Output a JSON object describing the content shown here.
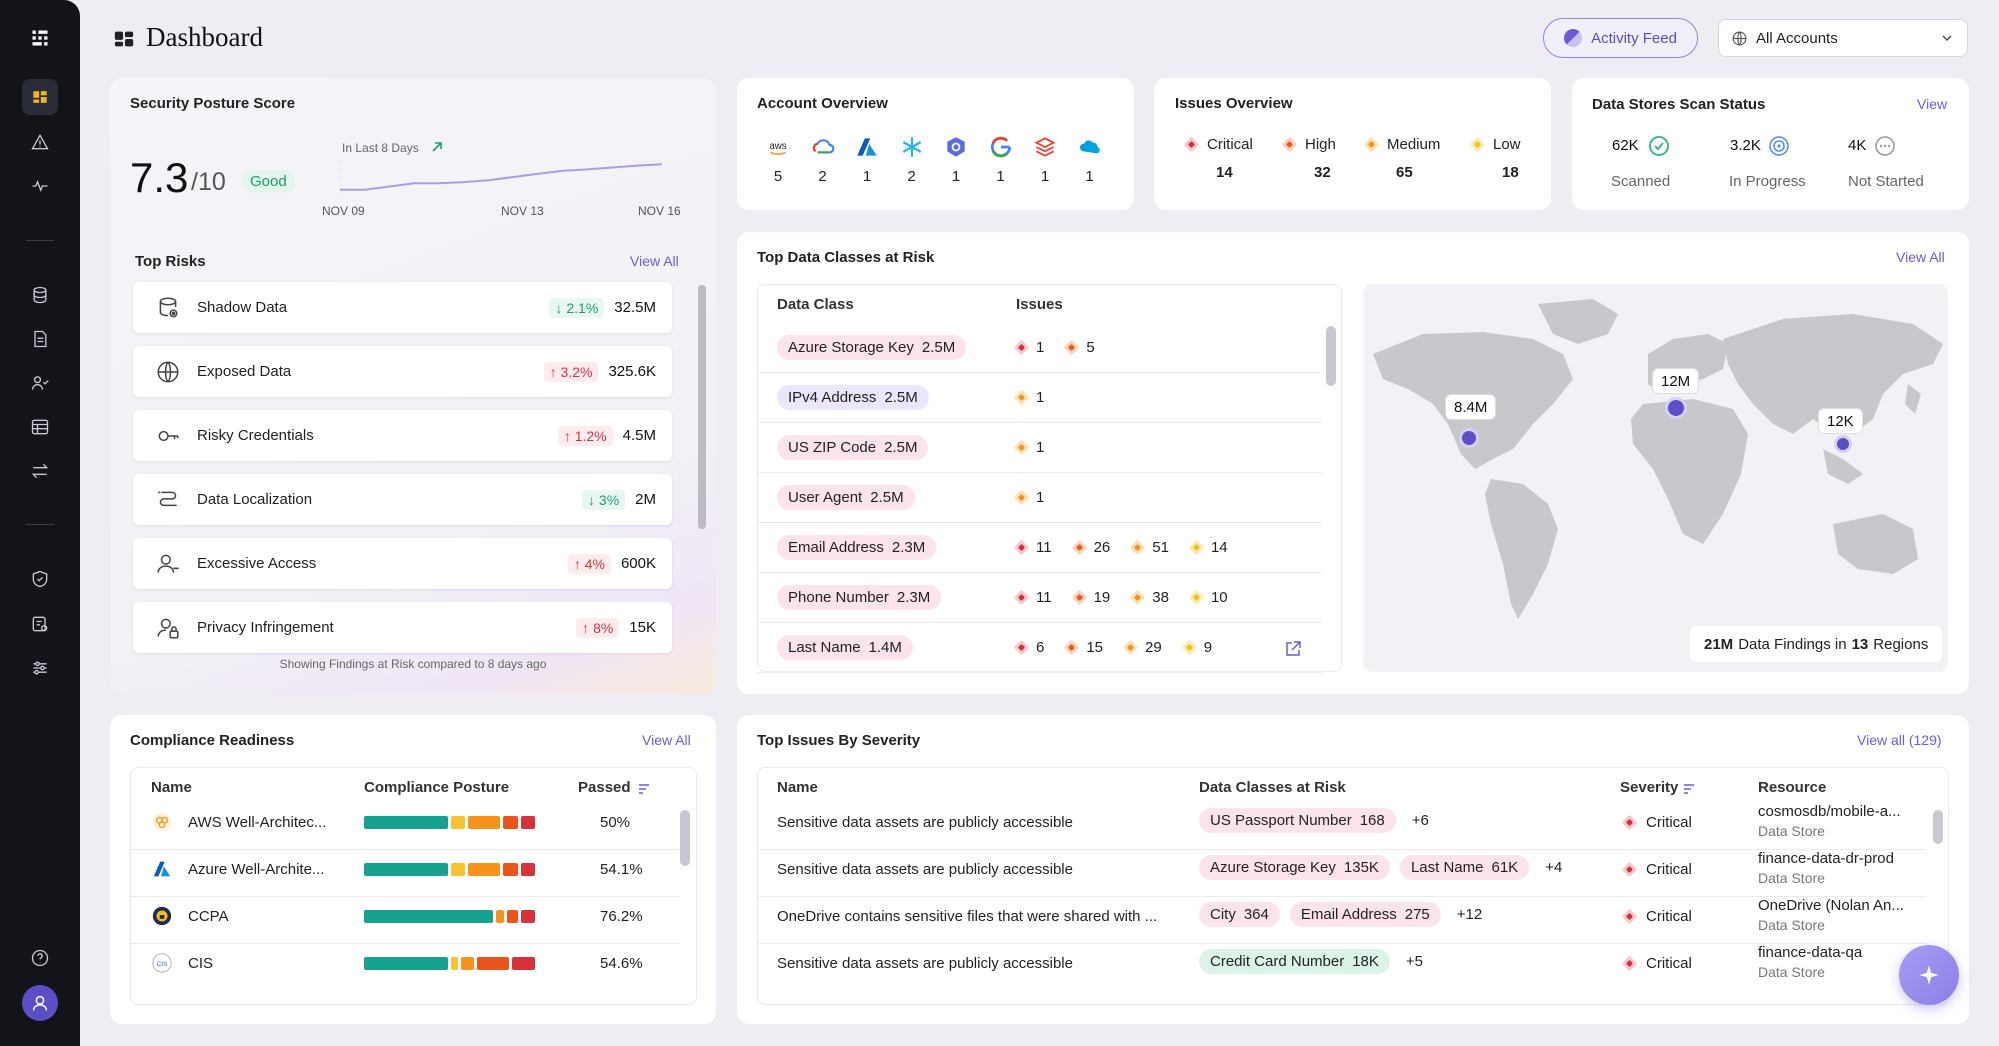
{
  "header": {
    "title": "Dashboard",
    "activity_feed": "Activity Feed",
    "account_select": "All Accounts"
  },
  "colors": {
    "accent": "#6b5bd6",
    "critical": "#d62f3c",
    "high": "#ef5b1e",
    "medium": "#f3941a",
    "low": "#f2c21a",
    "teal": "#17a290"
  },
  "sidebar": {
    "items": [
      "dashboard-icon",
      "alert-icon",
      "activity-icon",
      "database-icon",
      "document-icon",
      "users-icon",
      "table-icon",
      "transfer-icon",
      "shield-icon",
      "datastore-icon",
      "sliders-icon",
      "help-icon",
      "avatar-icon"
    ]
  },
  "posture": {
    "title": "Security Posture Score",
    "score": "7.3",
    "out_of": "/10",
    "badge": "Good",
    "trend_label": "In Last 8 Days",
    "dates": [
      "NOV 09",
      "NOV 13",
      "NOV 16"
    ],
    "trend_values": [
      6.9,
      6.9,
      6.95,
      7.0,
      7.0,
      7.02,
      7.05,
      7.1,
      7.15,
      7.2,
      7.22,
      7.25,
      7.28,
      7.3
    ]
  },
  "top_risks": {
    "title": "Top Risks",
    "view_all": "View All",
    "footer": "Showing Findings at Risk compared to 8 days ago",
    "items": [
      {
        "icon": "shadow-data-icon",
        "label": "Shadow Data",
        "pct": "2.1%",
        "dir": "down",
        "value": "32.5M"
      },
      {
        "icon": "globe-icon",
        "label": "Exposed Data",
        "pct": "3.2%",
        "dir": "up",
        "value": "325.6K"
      },
      {
        "icon": "key-icon",
        "label": "Risky Credentials",
        "pct": "1.2%",
        "dir": "up",
        "value": "4.5M"
      },
      {
        "icon": "route-icon",
        "label": "Data Localization",
        "pct": "3%",
        "dir": "down",
        "value": "2M"
      },
      {
        "icon": "user-access-icon",
        "label": "Excessive Access",
        "pct": "4%",
        "dir": "up",
        "value": "600K"
      },
      {
        "icon": "user-lock-icon",
        "label": "Privacy Infringement",
        "pct": "8%",
        "dir": "up",
        "value": "15K"
      }
    ]
  },
  "account_overview": {
    "title": "Account Overview",
    "providers": [
      {
        "name": "aws-icon",
        "count": "5",
        "glyph": "aws"
      },
      {
        "name": "gcp-icon",
        "count": "2"
      },
      {
        "name": "azure-icon",
        "count": "1"
      },
      {
        "name": "snowflake-icon",
        "count": "2"
      },
      {
        "name": "kubernetes-icon",
        "count": "1"
      },
      {
        "name": "google-icon",
        "count": "1"
      },
      {
        "name": "databricks-icon",
        "count": "1"
      },
      {
        "name": "salesforce-icon",
        "count": "1"
      }
    ]
  },
  "issues_overview": {
    "title": "Issues Overview",
    "items": [
      {
        "sev": "c",
        "label": "Critical",
        "count": "14"
      },
      {
        "sev": "h",
        "label": "High",
        "count": "32"
      },
      {
        "sev": "m",
        "label": "Medium",
        "count": "65"
      },
      {
        "sev": "l",
        "label": "Low",
        "count": "18"
      }
    ]
  },
  "scan_status": {
    "title": "Data Stores Scan Status",
    "view": "View",
    "items": [
      {
        "value": "62K",
        "label": "Scanned"
      },
      {
        "value": "3.2K",
        "label": "In Progress"
      },
      {
        "value": "4K",
        "label": "Not Started"
      }
    ]
  },
  "data_classes": {
    "title": "Top Data Classes at Risk",
    "view_all": "View All",
    "col_class": "Data Class",
    "col_issues": "Issues",
    "rows": [
      {
        "name": "Azure Storage Key",
        "count": "2.5M",
        "tone": "p",
        "issues": [
          [
            "c",
            "1"
          ],
          [
            "h",
            "5"
          ]
        ]
      },
      {
        "name": "IPv4 Address",
        "count": "2.5M",
        "tone": "v",
        "issues": [
          [
            "m",
            "1"
          ]
        ]
      },
      {
        "name": "US ZIP Code",
        "count": "2.5M",
        "tone": "p",
        "issues": [
          [
            "m",
            "1"
          ]
        ]
      },
      {
        "name": "User Agent",
        "count": "2.5M",
        "tone": "p",
        "issues": [
          [
            "m",
            "1"
          ]
        ]
      },
      {
        "name": "Email Address",
        "count": "2.3M",
        "tone": "p",
        "issues": [
          [
            "c",
            "11"
          ],
          [
            "h",
            "26"
          ],
          [
            "m",
            "51"
          ],
          [
            "l",
            "14"
          ]
        ]
      },
      {
        "name": "Phone Number",
        "count": "2.3M",
        "tone": "p",
        "issues": [
          [
            "c",
            "11"
          ],
          [
            "h",
            "19"
          ],
          [
            "m",
            "38"
          ],
          [
            "l",
            "10"
          ]
        ]
      },
      {
        "name": "Last Name",
        "count": "1.4M",
        "tone": "p",
        "issues": [
          [
            "c",
            "6"
          ],
          [
            "h",
            "15"
          ],
          [
            "m",
            "29"
          ],
          [
            "l",
            "9"
          ]
        ]
      }
    ],
    "map": {
      "pins": [
        {
          "label": "8.4M"
        },
        {
          "label": "12M"
        },
        {
          "label": "12K"
        }
      ],
      "summary_value": "21M",
      "summary_mid": "Data Findings in",
      "summary_regions": "13",
      "summary_end": "Regions"
    }
  },
  "compliance": {
    "title": "Compliance Readiness",
    "view_all": "View All",
    "col_name": "Name",
    "col_posture": "Compliance Posture",
    "col_passed": "Passed",
    "rows": [
      {
        "icon": "aws-wa-icon",
        "name": "AWS Well-Architec...",
        "passed": "50%",
        "segments": [
          0.5,
          0.1,
          0.2,
          0.1,
          0.1
        ]
      },
      {
        "icon": "azure-icon",
        "name": "Azure Well-Archite...",
        "passed": "54.1%",
        "segments": [
          0.5,
          0.1,
          0.2,
          0.1,
          0.1
        ]
      },
      {
        "icon": "ccpa-icon",
        "name": "CCPA",
        "passed": "76.2%",
        "segments": [
          0.76,
          0.06,
          0.08,
          0.1
        ]
      },
      {
        "icon": "cis-icon",
        "name": "CIS",
        "passed": "54.6%",
        "segments": [
          0.5,
          0.06,
          0.09,
          0.2,
          0.15
        ]
      }
    ]
  },
  "top_issues": {
    "title": "Top Issues By Severity",
    "view_all": "View all (129)",
    "col_name": "Name",
    "col_classes": "Data Classes at Risk",
    "col_severity": "Severity",
    "col_resource": "Resource",
    "rows": [
      {
        "name": "Sensitive data assets are publicly accessible",
        "chips": [
          {
            "label": "US Passport Number",
            "count": "168",
            "tone": "p"
          }
        ],
        "more": "+6",
        "severity": "Critical",
        "resource": "cosmosdb/mobile-a...",
        "resource_type": "Data Store"
      },
      {
        "name": "Sensitive data assets are publicly accessible",
        "chips": [
          {
            "label": "Azure Storage Key",
            "count": "135K",
            "tone": "p"
          },
          {
            "label": "Last Name",
            "count": "61K",
            "tone": "p"
          }
        ],
        "more": "+4",
        "severity": "Critical",
        "resource": "finance-data-dr-prod",
        "resource_type": "Data Store"
      },
      {
        "name": "OneDrive contains sensitive files that were shared with ...",
        "chips": [
          {
            "label": "City",
            "count": "364",
            "tone": "p"
          },
          {
            "label": "Email Address",
            "count": "275",
            "tone": "p"
          }
        ],
        "more": "+12",
        "severity": "Critical",
        "resource": "OneDrive (Nolan An...",
        "resource_type": "Data Store"
      },
      {
        "name": "Sensitive data assets are publicly accessible",
        "chips": [
          {
            "label": "Credit Card Number",
            "count": "18K",
            "tone": "g"
          }
        ],
        "more": "+5",
        "severity": "Critical",
        "resource": "finance-data-qa",
        "resource_type": "Data Store"
      }
    ]
  }
}
